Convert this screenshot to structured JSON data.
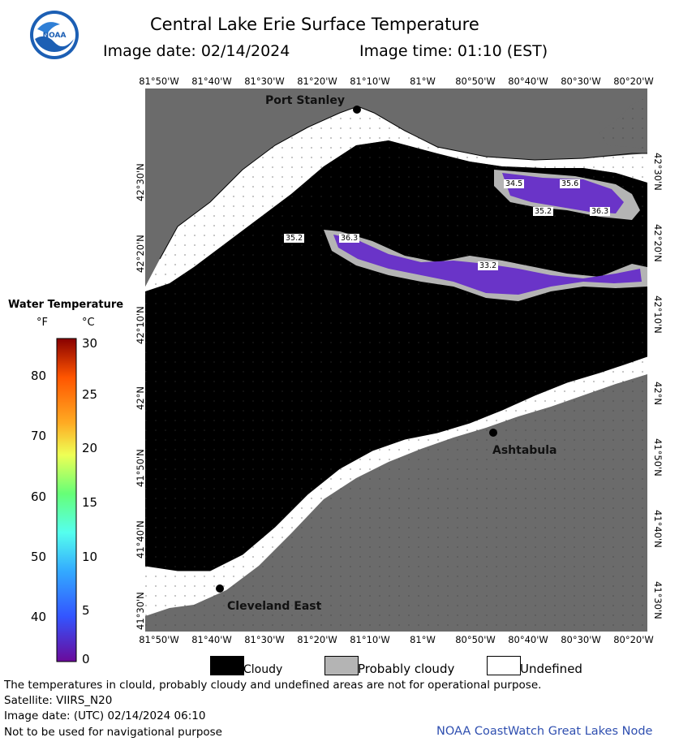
{
  "header": {
    "title": "Central Lake Erie Surface Temperature",
    "image_date": "Image date: 02/14/2024",
    "image_time": "Image time: 01:10 (EST)",
    "logo_text": "NOAA"
  },
  "map": {
    "lon_ticks": [
      "81°50'W",
      "81°40'W",
      "81°30'W",
      "81°20'W",
      "81°10'W",
      "81°W",
      "80°50'W",
      "80°40'W",
      "80°30'W",
      "80°20'W"
    ],
    "lat_ticks": [
      "42°30'N",
      "42°20'N",
      "42°10'N",
      "42°N",
      "41°50'N",
      "41°40'N",
      "41°30'N"
    ],
    "places": [
      {
        "name": "Port Stanley"
      },
      {
        "name": "Ashtabula"
      },
      {
        "name": "Cleveland East"
      }
    ],
    "temp_labels": [
      "34.5",
      "35.6",
      "35.2",
      "36.3",
      "35.2",
      "36.3",
      "33.2"
    ],
    "colors": {
      "land": "#6b6b6b",
      "cloudy": "#000000",
      "probably_cloudy": "#b4b4b4",
      "undefined": "#ffffff",
      "water_cold": "#6a34c8"
    }
  },
  "legend": {
    "title": "Water Temperature",
    "unit_f": "°F",
    "unit_c": "°C",
    "fahrenheit_ticks": [
      "80",
      "70",
      "60",
      "50",
      "40"
    ],
    "celsius_ticks": [
      "30",
      "25",
      "20",
      "15",
      "10",
      "5",
      "0"
    ],
    "categories": [
      {
        "label": "Cloudy",
        "color": "#000000"
      },
      {
        "label": "Probably cloudy",
        "color": "#b4b4b4"
      },
      {
        "label": "Undefined",
        "color": "#ffffff"
      }
    ]
  },
  "footer": {
    "disclaimer": "The temperatures in clould, probably cloudy and undefined areas are not for operational purpose.",
    "satellite": "Satellite: VIIRS_N20",
    "utc_date": "Image date: (UTC) 02/14/2024  06:10",
    "nav_warning": "Not to be used for navigational purpose",
    "credit": "NOAA CoastWatch Great Lakes Node"
  }
}
